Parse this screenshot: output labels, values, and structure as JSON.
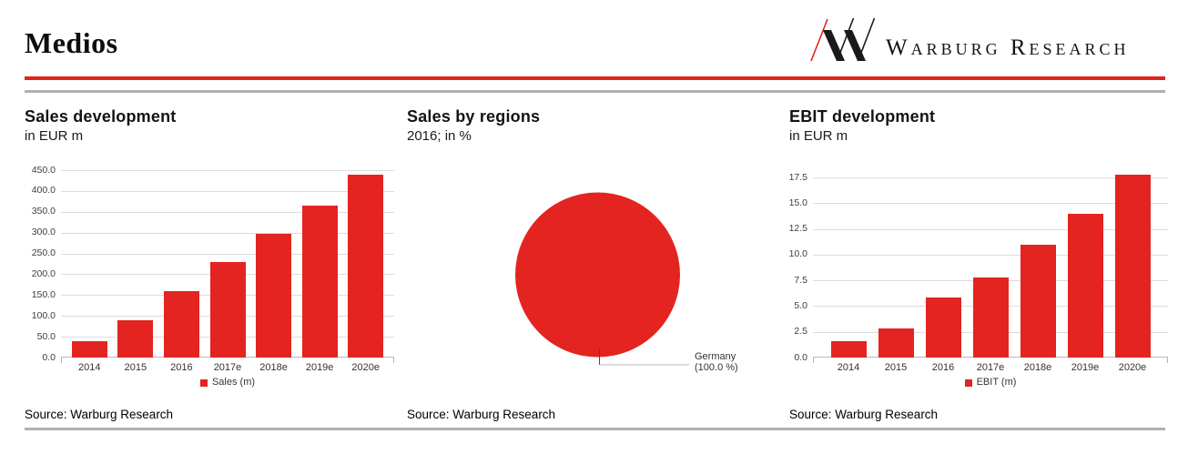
{
  "header": {
    "title": "Medios",
    "brand_wordmark": "Warburg Research"
  },
  "colors": {
    "accent_red": "#e2231b",
    "chart_red": "#e32420",
    "rule_gray": "#b0b0b0",
    "footer_gray": "#b0b0b0"
  },
  "chart_data": [
    {
      "type": "bar",
      "title": "Sales development",
      "subtitle": "in EUR m",
      "categories": [
        "2014",
        "2015",
        "2016",
        "2017e",
        "2018e",
        "2019e",
        "2020e"
      ],
      "series": [
        {
          "name": "Sales (m)",
          "values": [
            40,
            90,
            160,
            230,
            297,
            365,
            440
          ]
        }
      ],
      "ylim": [
        0,
        450
      ],
      "ytick_step": 50,
      "ytick_decimals": 1,
      "grid": true,
      "legend_position": "bottom",
      "color": "#e32420",
      "source": "Source: Warburg Research"
    },
    {
      "type": "pie",
      "title": "Sales by regions",
      "subtitle": "2016; in %",
      "slices": [
        {
          "label": "Germany",
          "value": 100.0,
          "value_label": "(100.0 %)"
        }
      ],
      "color": "#e32420",
      "source": "Source: Warburg Research"
    },
    {
      "type": "bar",
      "title": "EBIT development",
      "subtitle": "in EUR m",
      "categories": [
        "2014",
        "2015",
        "2016",
        "2017e",
        "2018e",
        "2019e",
        "2020e"
      ],
      "series": [
        {
          "name": "EBIT (m)",
          "values": [
            1.6,
            2.8,
            5.8,
            7.8,
            11.0,
            14.0,
            17.8
          ]
        }
      ],
      "ylim": [
        0,
        17.5
      ],
      "ytick_step": 2.5,
      "ytick_decimals": 1,
      "grid": true,
      "legend_position": "bottom",
      "color": "#e32420",
      "source": "Source: Warburg Research"
    }
  ]
}
